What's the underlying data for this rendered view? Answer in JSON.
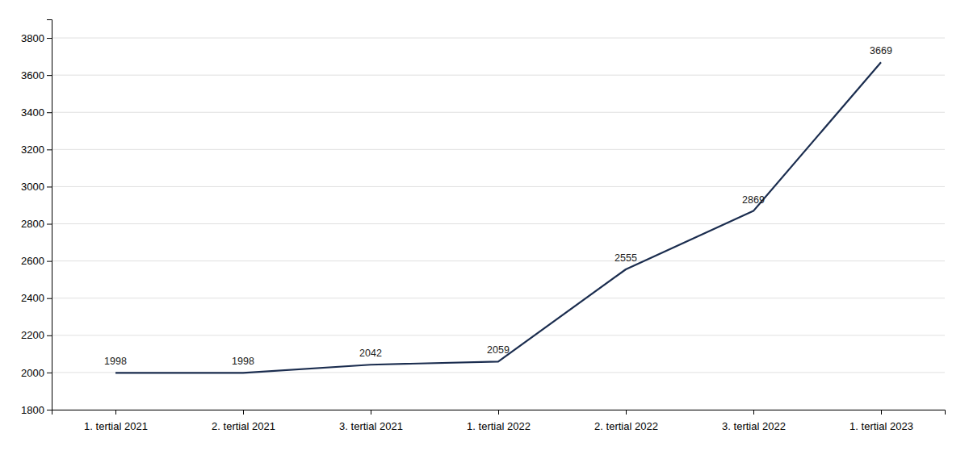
{
  "chart_data": {
    "type": "line",
    "categories": [
      "1. tertial 2021",
      "2. tertial 2021",
      "3. tertial 2021",
      "1. tertial 2022",
      "2. tertial 2022",
      "3. tertial 2022",
      "1. tertial 2023"
    ],
    "values": [
      1998,
      1998,
      2042,
      2059,
      2555,
      2869,
      3669
    ],
    "color": "#1b2d4f",
    "ylim": [
      1800,
      3900
    ],
    "yticks": [
      1800,
      2000,
      2200,
      2400,
      2600,
      2800,
      3000,
      3200,
      3400,
      3600,
      3800
    ],
    "grid": true,
    "data_labels": true
  }
}
